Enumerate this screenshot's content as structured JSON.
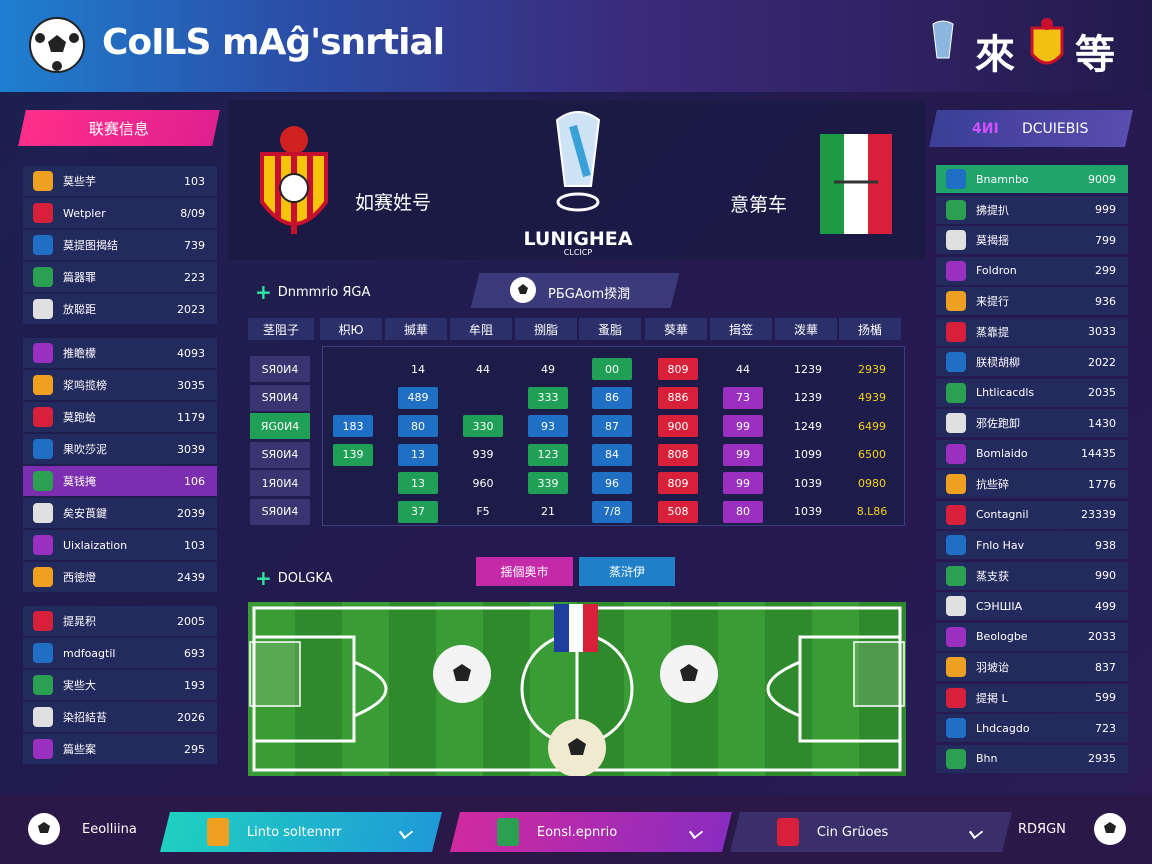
{
  "header": {
    "title": "CoILS mAĝ'snrtial",
    "right_text_1": "來",
    "right_text_2": "等"
  },
  "left_panel": {
    "title": "联赛信息",
    "groups": [
      [
        {
          "name": "莫些芋",
          "value": "103"
        },
        {
          "name": "Wetpler",
          "value": "8/09"
        },
        {
          "name": "莫提图揭结",
          "value": "739"
        },
        {
          "name": "篇器罪",
          "value": "223"
        },
        {
          "name": "放聪距",
          "value": "2023"
        }
      ],
      [
        {
          "name": "推瞻檬",
          "value": "4093"
        },
        {
          "name": "浆鸣揽榜",
          "value": "3035"
        },
        {
          "name": "莫跑蛤",
          "value": "1179"
        },
        {
          "name": "果吹莎泥",
          "value": "3039"
        },
        {
          "name": "莫钱掩",
          "value": "106",
          "highlight": true
        },
        {
          "name": "矣安莨鍵",
          "value": "2039"
        },
        {
          "name": "Uixlaization",
          "value": "103"
        },
        {
          "name": "西徳燈",
          "value": "2439"
        }
      ],
      [
        {
          "name": "提晁积",
          "value": "2005"
        },
        {
          "name": "mdfoagtil",
          "value": "693"
        },
        {
          "name": "実些大",
          "value": "193"
        },
        {
          "name": "染招結苔",
          "value": "2026"
        },
        {
          "name": "篇些案",
          "value": "295"
        }
      ]
    ]
  },
  "match": {
    "home": "如赛姓号",
    "away": "意第车",
    "league": "LUNIGHEA",
    "league_sub": "CLCICP"
  },
  "stats": {
    "heading": "Dnmmrio ЯGA",
    "tab": "PБGAom揆潤",
    "columns": [
      "茎阻子",
      "枳Ю",
      "揻華",
      "牟阻",
      "捌脂",
      "蚤脂",
      "葵華",
      "揖签",
      "泼華",
      "扬楯"
    ],
    "rows": [
      {
        "label": "SЯ0И4",
        "cells": [
          null,
          "14",
          "44",
          "49",
          "00",
          "809",
          "44",
          "1239",
          "2939"
        ],
        "tones": [
          null,
          null,
          null,
          null,
          "green",
          "red",
          null,
          null,
          "yellow"
        ]
      },
      {
        "label": "SЯ0И4",
        "cells": [
          null,
          "489",
          null,
          "333",
          "86",
          "886",
          "73",
          "1239",
          "4939"
        ],
        "tones": [
          null,
          "blue",
          null,
          "green",
          "blue",
          "red",
          "purple",
          null,
          "yellow"
        ]
      },
      {
        "label": "ЯG0И4",
        "highlight": true,
        "cells": [
          "183",
          "80",
          "330",
          "93",
          "87",
          "900",
          "99",
          "1249",
          "6499"
        ],
        "tones": [
          "blue",
          "blue",
          "green",
          "blue",
          "blue",
          "red",
          "purple",
          null,
          "yellow"
        ]
      },
      {
        "label": "SЯ0И4",
        "cells": [
          "139",
          "13",
          "939",
          "123",
          "84",
          "808",
          "99",
          "1099",
          "6500"
        ],
        "tones": [
          "green",
          "blue",
          null,
          "green",
          "blue",
          "red",
          "purple",
          null,
          "yellow"
        ]
      },
      {
        "label": "1Я0И4",
        "cells": [
          null,
          "13",
          "960",
          "339",
          "96",
          "809",
          "99",
          "1039",
          "0980"
        ],
        "tones": [
          null,
          "green",
          null,
          "green",
          "blue",
          "red",
          "purple",
          null,
          "yellow"
        ]
      },
      {
        "label": "SЯ0И4",
        "cells": [
          null,
          "37",
          "F5",
          "21",
          "7/8",
          "508",
          "80",
          "1039",
          "8.L86"
        ],
        "tones": [
          null,
          "green",
          null,
          null,
          "blue",
          "red",
          "purple",
          null,
          "yellow"
        ]
      }
    ]
  },
  "pitch_section": {
    "heading": "DOLGKA",
    "buttons": [
      "揺個奥巿",
      "蒸浒伊"
    ]
  },
  "right_panel": {
    "title_accent": "4ИI",
    "title": "DCUIEBIS",
    "rows": [
      {
        "name": "Bnamnbo",
        "value": "9009",
        "highlight": true
      },
      {
        "name": "拂提扒",
        "value": "999"
      },
      {
        "name": "莫揭揺",
        "value": "799"
      },
      {
        "name": "Foldron",
        "value": "299"
      },
      {
        "name": "来提行",
        "value": "936"
      },
      {
        "name": "蒸靠提",
        "value": "3033"
      },
      {
        "name": "朕棂胡柳",
        "value": "2022"
      },
      {
        "name": "Lhtlicacdls",
        "value": "2035"
      },
      {
        "name": "邪佐跑卸",
        "value": "1430"
      },
      {
        "name": "Bomlaido",
        "value": "14435"
      },
      {
        "name": "抗些碎",
        "value": "1776"
      },
      {
        "name": "Contagnil",
        "value": "23339"
      },
      {
        "name": "Fnlo Hav",
        "value": "938"
      },
      {
        "name": "蒸支获",
        "value": "990"
      },
      {
        "name": "CЭНШIA",
        "value": "499"
      },
      {
        "name": "Beologbe",
        "value": "2033"
      },
      {
        "name": "羽坡诒",
        "value": "837"
      },
      {
        "name": "提掲 L",
        "value": "599"
      },
      {
        "name": "Lhdcagdo",
        "value": "723"
      },
      {
        "name": "Bhn",
        "value": "2935"
      }
    ]
  },
  "footer": {
    "label": "Eeolliina",
    "tabs": [
      "Linto soltennrr",
      "Eonsl.epnrio",
      "Cin Grüoes"
    ],
    "right": "RDЯGN"
  }
}
